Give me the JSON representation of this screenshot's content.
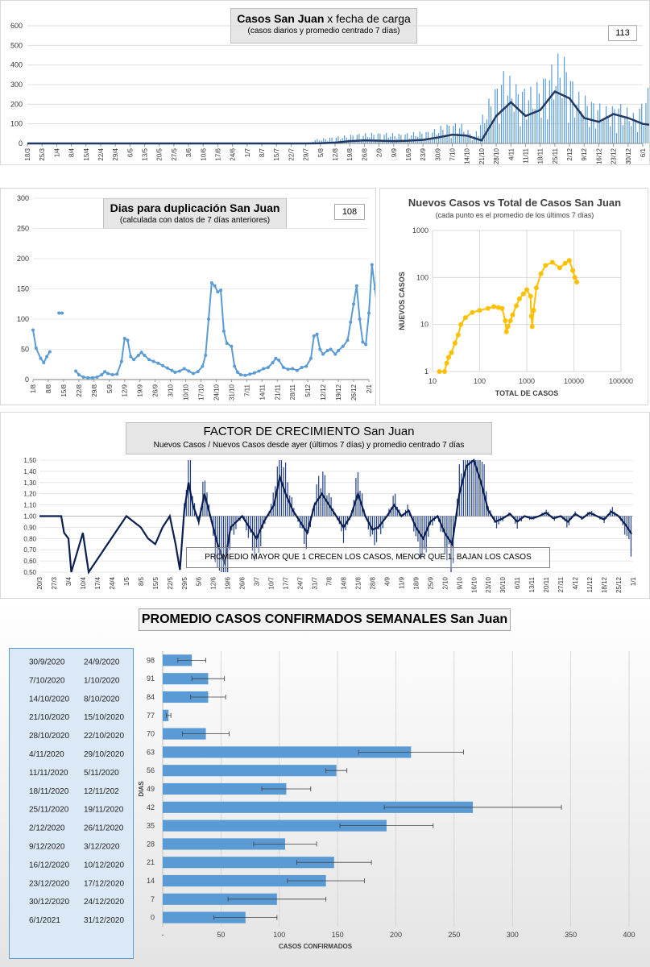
{
  "chart_data": [
    {
      "id": "daily",
      "type": "bar",
      "title": "Casos San Juan",
      "title_suffix": "x fecha de carga",
      "subtitle": "(casos diarios y promedio  centrado  7 días)",
      "badge": "113",
      "ylim": [
        0,
        600
      ],
      "yticks": [
        "0",
        "100",
        "200",
        "300",
        "400",
        "500",
        "600"
      ],
      "xticks": [
        "18/3",
        "25/3",
        "1/4",
        "8/4",
        "15/4",
        "22/4",
        "29/4",
        "6/5",
        "13/5",
        "20/5",
        "27/5",
        "3/6",
        "10/6",
        "17/6",
        "24/6",
        "1/7",
        "8/7",
        "15/7",
        "22/7",
        "29/7",
        "5/8",
        "12/8",
        "19/8",
        "26/8",
        "2/9",
        "9/9",
        "16/9",
        "23/9",
        "30/9",
        "7/10",
        "14/10",
        "21/10",
        "28/10",
        "4/11",
        "11/11",
        "18/11",
        "25/11",
        "2/12",
        "9/12",
        "16/12",
        "23/12",
        "30/12",
        "6/1"
      ],
      "avg_series": [
        [
          0,
          0
        ],
        [
          19,
          0
        ],
        [
          20,
          1
        ],
        [
          21,
          4
        ],
        [
          22,
          12
        ],
        [
          23,
          15
        ],
        [
          24,
          14
        ],
        [
          25,
          12
        ],
        [
          26,
          14
        ],
        [
          27,
          18
        ],
        [
          28,
          30
        ],
        [
          29,
          45
        ],
        [
          30,
          40
        ],
        [
          31,
          15
        ],
        [
          32,
          140
        ],
        [
          33,
          210
        ],
        [
          34,
          140
        ],
        [
          35,
          170
        ],
        [
          36,
          265
        ],
        [
          37,
          230
        ],
        [
          38,
          130
        ],
        [
          39,
          110
        ],
        [
          40,
          150
        ],
        [
          41,
          130
        ],
        [
          42,
          100
        ],
        [
          43,
          90
        ],
        [
          44,
          62
        ]
      ],
      "bar_peaks": [
        [
          19.5,
          20
        ],
        [
          20.5,
          30
        ],
        [
          21.5,
          40
        ],
        [
          22.5,
          50
        ],
        [
          23.5,
          55
        ],
        [
          24.5,
          55
        ],
        [
          25.5,
          50
        ],
        [
          26.5,
          60
        ],
        [
          27.5,
          65
        ],
        [
          28.5,
          100
        ],
        [
          29.5,
          110
        ],
        [
          30.5,
          40
        ],
        [
          31.5,
          230
        ],
        [
          32.5,
          380
        ],
        [
          33.5,
          300
        ],
        [
          34.5,
          290
        ],
        [
          35.5,
          380
        ],
        [
          36.5,
          490
        ],
        [
          37.5,
          270
        ],
        [
          38.5,
          230
        ],
        [
          39.5,
          190
        ],
        [
          40.5,
          210
        ],
        [
          41.5,
          150
        ],
        [
          42.5,
          310
        ],
        [
          43.5,
          210
        ]
      ],
      "colors": {
        "bars": "#5b9bd5",
        "avg": "#1f3864"
      }
    },
    {
      "id": "doubling",
      "type": "line",
      "title": "Dias para duplicación San Juan",
      "subtitle": "(calculada con datos de 7 días anteriores)",
      "badge": "108",
      "ylim": [
        0,
        300
      ],
      "yticks": [
        "0",
        "50",
        "100",
        "150",
        "200",
        "250",
        "300"
      ],
      "xticks": [
        "1/8",
        "8/8",
        "15/8",
        "22/8",
        "29/8",
        "5/9",
        "12/9",
        "19/9",
        "26/9",
        "3/10",
        "10/10",
        "17/10",
        "24/10",
        "31/10",
        "7/11",
        "14/11",
        "21/11",
        "28/11",
        "5/12",
        "12/12",
        "19/12",
        "26/12",
        "2/1"
      ],
      "series": [
        [
          [
            0,
            82
          ],
          [
            0.2,
            52
          ],
          [
            0.5,
            35
          ],
          [
            0.7,
            28
          ],
          [
            0.9,
            38
          ],
          [
            1.1,
            46
          ]
        ],
        [
          [
            1.7,
            110
          ],
          [
            1.9,
            110
          ]
        ],
        [
          [
            2.8,
            14
          ],
          [
            3,
            8
          ],
          [
            3.3,
            4
          ],
          [
            3.6,
            3
          ],
          [
            3.9,
            3
          ],
          [
            4.2,
            4
          ],
          [
            4.5,
            8
          ],
          [
            4.7,
            13
          ],
          [
            4.9,
            10
          ],
          [
            5.2,
            8
          ],
          [
            5.5,
            9
          ],
          [
            5.8,
            30
          ],
          [
            6,
            68
          ],
          [
            6.2,
            65
          ],
          [
            6.4,
            38
          ],
          [
            6.6,
            33
          ],
          [
            6.9,
            40
          ],
          [
            7.1,
            45
          ],
          [
            7.3,
            40
          ],
          [
            7.6,
            33
          ],
          [
            7.9,
            30
          ],
          [
            8.2,
            27
          ],
          [
            8.5,
            23
          ],
          [
            8.8,
            19
          ],
          [
            9.1,
            15
          ],
          [
            9.3,
            12
          ],
          [
            9.6,
            14
          ],
          [
            9.9,
            18
          ],
          [
            10.2,
            14
          ],
          [
            10.5,
            10
          ],
          [
            10.8,
            13
          ],
          [
            11.1,
            22
          ],
          [
            11.3,
            40
          ],
          [
            11.5,
            100
          ],
          [
            11.7,
            160
          ],
          [
            11.9,
            155
          ],
          [
            12.1,
            145
          ],
          [
            12.3,
            148
          ],
          [
            12.5,
            80
          ],
          [
            12.7,
            60
          ],
          [
            13,
            55
          ],
          [
            13.2,
            22
          ],
          [
            13.4,
            12
          ],
          [
            13.6,
            8
          ],
          [
            13.9,
            7
          ],
          [
            14.2,
            9
          ],
          [
            14.5,
            11
          ],
          [
            14.8,
            14
          ],
          [
            15.1,
            18
          ],
          [
            15.4,
            20
          ],
          [
            15.7,
            28
          ],
          [
            15.9,
            35
          ],
          [
            16.1,
            32
          ],
          [
            16.4,
            20
          ],
          [
            16.7,
            17
          ],
          [
            17,
            18
          ],
          [
            17.3,
            15
          ],
          [
            17.6,
            20
          ],
          [
            17.9,
            22
          ],
          [
            18.2,
            35
          ],
          [
            18.4,
            72
          ],
          [
            18.6,
            75
          ],
          [
            18.8,
            50
          ],
          [
            19,
            42
          ],
          [
            19.3,
            48
          ],
          [
            19.5,
            50
          ],
          [
            19.8,
            42
          ],
          [
            20,
            48
          ],
          [
            20.3,
            55
          ],
          [
            20.6,
            65
          ],
          [
            20.8,
            95
          ],
          [
            21,
            125
          ],
          [
            21.2,
            155
          ],
          [
            21.4,
            100
          ],
          [
            21.6,
            62
          ],
          [
            21.8,
            58
          ],
          [
            22,
            110
          ],
          [
            22.2,
            190
          ],
          [
            22.4,
            150
          ],
          [
            22.6,
            108
          ]
        ]
      ],
      "colors": {
        "line": "#5b9bd5"
      }
    },
    {
      "id": "newvstotal",
      "type": "scatter",
      "title": "Nuevos Casos vs Total de Casos San Juan",
      "subtitle": "(cada punto es el promedio de los últimos 7 días)",
      "xlabel": "TOTAL DE CASOS",
      "ylabel": "NUEVOS CASOS",
      "xscale": "log",
      "yscale": "log",
      "xticks": [
        "10",
        "100",
        "1000",
        "10000",
        "100000"
      ],
      "yticks": [
        "1",
        "10",
        "100",
        "1000"
      ],
      "points": [
        [
          14,
          1
        ],
        [
          18,
          1
        ],
        [
          20,
          1.5
        ],
        [
          22,
          2
        ],
        [
          25,
          2.5
        ],
        [
          30,
          4
        ],
        [
          35,
          6
        ],
        [
          40,
          10
        ],
        [
          50,
          14
        ],
        [
          70,
          18
        ],
        [
          100,
          20
        ],
        [
          150,
          22
        ],
        [
          200,
          24
        ],
        [
          250,
          23
        ],
        [
          300,
          22
        ],
        [
          350,
          12
        ],
        [
          370,
          7
        ],
        [
          400,
          9
        ],
        [
          450,
          12
        ],
        [
          500,
          16
        ],
        [
          600,
          25
        ],
        [
          700,
          35
        ],
        [
          850,
          45
        ],
        [
          1000,
          55
        ],
        [
          1200,
          40
        ],
        [
          1250,
          15
        ],
        [
          1300,
          9
        ],
        [
          1400,
          20
        ],
        [
          1600,
          60
        ],
        [
          2000,
          120
        ],
        [
          2500,
          180
        ],
        [
          3500,
          210
        ],
        [
          5000,
          160
        ],
        [
          6500,
          200
        ],
        [
          8000,
          230
        ],
        [
          9500,
          140
        ],
        [
          10500,
          100
        ],
        [
          11500,
          80
        ]
      ],
      "colors": {
        "points": "#ffc000"
      }
    },
    {
      "id": "growth",
      "type": "line",
      "title": "FACTOR DE CRECIMIENTO San Juan",
      "subtitle": "Nuevos Casos  / Nuevos Casos desde ayer (últimos 7 días) y promedio  centrado  7 días",
      "annotation": "PROMEDIO MAYOR QUE 1 CRECEN LOS CASOS, MENOR QUE 1, BAJAN LOS CASOS",
      "ylim": [
        0.5,
        1.5
      ],
      "yticks": [
        "0,50",
        "0,60",
        "0,70",
        "0,80",
        "0,90",
        "1,00",
        "1,10",
        "1,20",
        "1,30",
        "1,40",
        "1,50"
      ],
      "xticks": [
        "20/3",
        "27/3",
        "3/4",
        "10/4",
        "17/4",
        "24/4",
        "1/5",
        "8/5",
        "15/5",
        "22/5",
        "29/5",
        "5/6",
        "12/6",
        "19/6",
        "26/6",
        "3/7",
        "10/7",
        "17/7",
        "24/7",
        "31/7",
        "7/8",
        "14/8",
        "21/8",
        "28/8",
        "4/9",
        "11/9",
        "18/9",
        "25/9",
        "2/10",
        "9/10",
        "16/10",
        "23/10",
        "30/10",
        "6/11",
        "13/11",
        "20/11",
        "27/11",
        "4/12",
        "11/12",
        "18/12",
        "25/12",
        "1/1"
      ],
      "avg_series": [
        [
          0,
          1
        ],
        [
          1.5,
          1
        ],
        [
          1.7,
          0.85
        ],
        [
          2,
          0.8
        ],
        [
          2.2,
          0.5
        ],
        [
          3,
          0.85
        ],
        [
          3.4,
          0.5
        ],
        [
          6,
          1
        ],
        [
          7,
          0.9
        ],
        [
          7.5,
          0.8
        ],
        [
          8,
          0.75
        ],
        [
          8.5,
          0.9
        ],
        [
          9,
          1
        ],
        [
          9.4,
          0.75
        ],
        [
          9.7,
          0.52
        ],
        [
          10,
          1.05
        ],
        [
          10.3,
          1.3
        ],
        [
          10.6,
          1.1
        ],
        [
          11,
          0.95
        ],
        [
          11.4,
          1.2
        ],
        [
          11.8,
          1.0
        ],
        [
          12.3,
          0.75
        ],
        [
          12.8,
          0.58
        ],
        [
          13.2,
          0.9
        ],
        [
          14,
          1.0
        ],
        [
          14.5,
          0.9
        ],
        [
          15,
          0.8
        ],
        [
          15.5,
          0.95
        ],
        [
          16.2,
          1.1
        ],
        [
          16.6,
          1.35
        ],
        [
          17,
          1.2
        ],
        [
          17.5,
          1.05
        ],
        [
          18,
          0.95
        ],
        [
          18.5,
          0.85
        ],
        [
          19,
          1.1
        ],
        [
          19.5,
          1.2
        ],
        [
          20,
          1.1
        ],
        [
          20.5,
          1.0
        ],
        [
          21,
          0.9
        ],
        [
          21.5,
          1.0
        ],
        [
          22,
          1.2
        ],
        [
          22.5,
          1.0
        ],
        [
          23,
          0.88
        ],
        [
          23.4,
          0.9
        ],
        [
          24,
          1.0
        ],
        [
          24.5,
          1.1
        ],
        [
          25,
          1.0
        ],
        [
          25.5,
          1.05
        ],
        [
          26,
          0.9
        ],
        [
          26.5,
          0.8
        ],
        [
          27,
          0.95
        ],
        [
          27.5,
          1.0
        ],
        [
          28,
          0.85
        ],
        [
          28.5,
          0.75
        ],
        [
          29,
          1.2
        ],
        [
          29.5,
          1.45
        ],
        [
          30,
          1.5
        ],
        [
          30.5,
          1.3
        ],
        [
          31,
          1.05
        ],
        [
          31.5,
          0.95
        ],
        [
          32,
          0.98
        ],
        [
          32.5,
          1.02
        ],
        [
          33,
          0.95
        ],
        [
          33.5,
          1.0
        ],
        [
          34,
          0.98
        ],
        [
          34.5,
          1.0
        ],
        [
          35,
          1.03
        ],
        [
          35.5,
          0.98
        ],
        [
          36,
          1.0
        ],
        [
          36.5,
          0.95
        ],
        [
          37,
          1.02
        ],
        [
          37.5,
          0.98
        ],
        [
          38,
          1.03
        ],
        [
          38.5,
          1.0
        ],
        [
          39,
          0.97
        ],
        [
          39.5,
          1.04
        ],
        [
          40,
          1.0
        ],
        [
          40.5,
          0.92
        ],
        [
          40.9,
          0.84
        ]
      ],
      "colors": {
        "line": "#0c1f52"
      }
    },
    {
      "id": "weekly",
      "type": "bar",
      "title": "PROMEDIO CASOS CONFIRMADOS SEMANALES San Juan",
      "xlabel": "CASOS CONFIRMADOS",
      "ylabel": "DIAS",
      "xlim": [
        0,
        400
      ],
      "xticks": [
        "-",
        "50",
        "100",
        "150",
        "200",
        "250",
        "300",
        "350",
        "400"
      ],
      "categories": [
        "98",
        "91",
        "84",
        "77",
        "70",
        "63",
        "56",
        "49",
        "42",
        "35",
        "28",
        "21",
        "14",
        "7",
        "0"
      ],
      "date_pairs": [
        [
          "30/9/2020",
          "24/9/2020"
        ],
        [
          "7/10/2020",
          "1/10/2020"
        ],
        [
          "14/10/2020",
          "8/10/2020"
        ],
        [
          "21/10/2020",
          "15/10/2020"
        ],
        [
          "28/10/2020",
          "22/10/2020"
        ],
        [
          "4/11/2020",
          "29/10/2020"
        ],
        [
          "11/11/2020",
          "5/11/2020"
        ],
        [
          "18/11/2020",
          "12/11/202"
        ],
        [
          "25/11/2020",
          "19/11/2020"
        ],
        [
          "2/12/2020",
          "26/11/2020"
        ],
        [
          "9/12/2020",
          "3/12/2020"
        ],
        [
          "16/12/2020",
          "10/12/2020"
        ],
        [
          "23/12/2020",
          "17/12/2020"
        ],
        [
          "30/12/2020",
          "24/12/2020"
        ],
        [
          "6/1/2021",
          "31/12/2020"
        ]
      ],
      "values": [
        25,
        39,
        39,
        5,
        37,
        213,
        149,
        106,
        266,
        192,
        105,
        147,
        140,
        98,
        71
      ],
      "errors": [
        12,
        14,
        15,
        2,
        20,
        45,
        9,
        21,
        76,
        40,
        27,
        32,
        33,
        42,
        27
      ],
      "colors": {
        "bars": "#5b9bd5",
        "error": "#404040"
      }
    }
  ]
}
